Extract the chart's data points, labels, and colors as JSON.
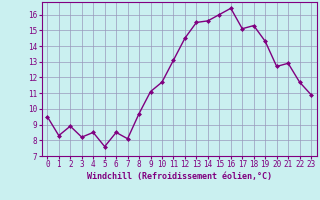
{
  "x": [
    0,
    1,
    2,
    3,
    4,
    5,
    6,
    7,
    8,
    9,
    10,
    11,
    12,
    13,
    14,
    15,
    16,
    17,
    18,
    19,
    20,
    21,
    22,
    23
  ],
  "y": [
    9.5,
    8.3,
    8.9,
    8.2,
    8.5,
    7.6,
    8.5,
    8.1,
    9.7,
    11.1,
    11.7,
    13.1,
    14.5,
    15.5,
    15.6,
    16.0,
    16.4,
    15.1,
    15.3,
    14.3,
    12.7,
    12.9,
    11.7,
    10.9
  ],
  "line_color": "#800080",
  "marker": "D",
  "marker_size": 2.0,
  "bg_color": "#caf0f0",
  "grid_color": "#9999bb",
  "xlabel": "Windchill (Refroidissement éolien,°C)",
  "xlabel_color": "#800080",
  "tick_color": "#800080",
  "spine_color": "#800080",
  "xlim": [
    -0.5,
    23.5
  ],
  "ylim": [
    7,
    16.8
  ],
  "yticks": [
    7,
    8,
    9,
    10,
    11,
    12,
    13,
    14,
    15,
    16
  ],
  "xticks": [
    0,
    1,
    2,
    3,
    4,
    5,
    6,
    7,
    8,
    9,
    10,
    11,
    12,
    13,
    14,
    15,
    16,
    17,
    18,
    19,
    20,
    21,
    22,
    23
  ],
  "label_fontsize": 6.0,
  "tick_fontsize": 5.5,
  "linewidth": 1.0
}
